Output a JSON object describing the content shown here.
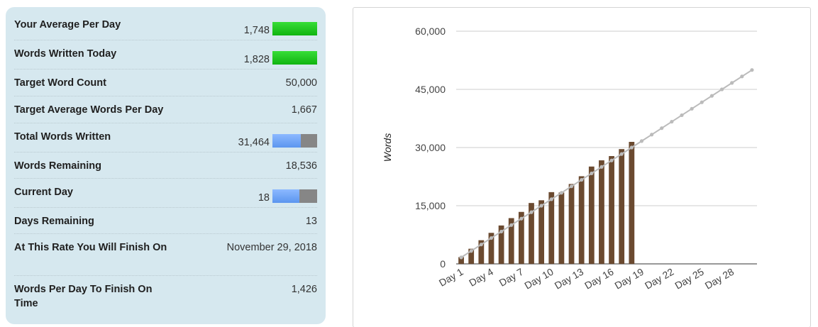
{
  "stats": [
    {
      "label": "Your Average Per Day",
      "value": "1,748",
      "bar": {
        "type": "green",
        "fraction": 1.0
      }
    },
    {
      "label": "Words Written Today",
      "value": "1,828",
      "bar": {
        "type": "green",
        "fraction": 1.0
      }
    },
    {
      "label": "Target Word Count",
      "value": "50,000"
    },
    {
      "label": "Target Average Words Per Day",
      "value": "1,667"
    },
    {
      "label": "Total Words Written",
      "value": "31,464",
      "bar": {
        "type": "blue",
        "fraction": 0.63
      }
    },
    {
      "label": "Words Remaining",
      "value": "18,536"
    },
    {
      "label": "Current Day",
      "value": "18",
      "bar": {
        "type": "blue",
        "fraction": 0.6
      }
    },
    {
      "label": "Days Remaining",
      "value": "13"
    },
    {
      "label": "At This Rate You Will Finish On",
      "value": "November 29, 2018"
    },
    {
      "label": "Words Per Day To Finish On Time",
      "value": "1,426"
    }
  ],
  "chart_data": {
    "type": "bar",
    "ylabel": "Words",
    "ylim": [
      0,
      60000
    ],
    "yticks": [
      "0",
      "15,000",
      "30,000",
      "45,000",
      "60,000"
    ],
    "ytick_values": [
      0,
      15000,
      30000,
      45000,
      60000
    ],
    "x_tick_labels": [
      "Day 1",
      "Day 4",
      "Day 7",
      "Day 10",
      "Day 13",
      "Day 16",
      "Day 19",
      "Day 22",
      "Day 25",
      "Day 28"
    ],
    "x_tick_days": [
      1,
      4,
      7,
      10,
      13,
      16,
      19,
      22,
      25,
      28
    ],
    "days": 30,
    "bar_color": "#6b4a30",
    "series": [
      {
        "type": "bar",
        "values": [
          1748,
          3900,
          6100,
          8000,
          9900,
          11800,
          13400,
          15700,
          16400,
          18500,
          18400,
          20600,
          22600,
          25100,
          26700,
          27800,
          29600,
          31464
        ]
      },
      {
        "type": "line",
        "color": "#bbbbbb",
        "values": [
          1667,
          3333,
          5000,
          6667,
          8333,
          10000,
          11667,
          13333,
          15000,
          16667,
          18333,
          20000,
          21667,
          23333,
          25000,
          26667,
          28333,
          30000,
          31667,
          33333,
          35000,
          36667,
          38333,
          40000,
          41667,
          43333,
          45000,
          46667,
          48333,
          50000
        ]
      }
    ]
  }
}
